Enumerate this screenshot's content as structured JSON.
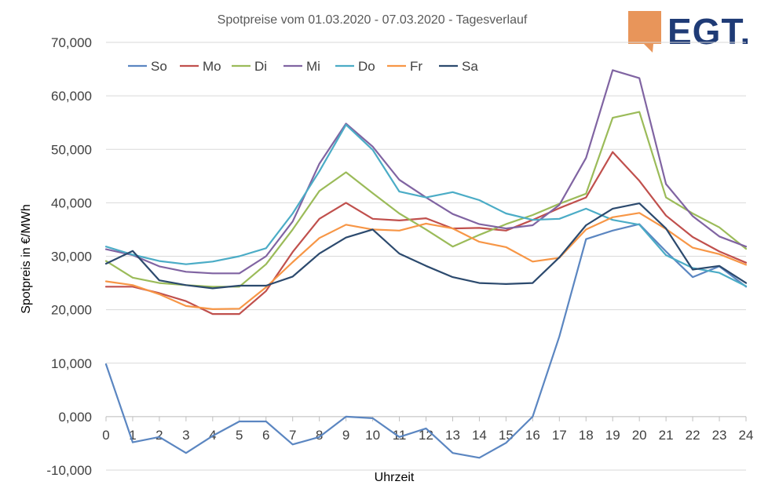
{
  "chart_data": {
    "type": "line",
    "title": "Spotpreise vom 01.03.2020 - 07.03.2020 - Tagesverlauf",
    "xlabel": "Uhrzeit",
    "ylabel": "Spotpreis in €/MWh",
    "ylim": [
      -10000,
      70000
    ],
    "xlim": [
      0,
      24
    ],
    "yticks": [
      "-10,000",
      "0,000",
      "10,000",
      "20,000",
      "30,000",
      "40,000",
      "50,000",
      "60,000",
      "70,000"
    ],
    "ytick_values": [
      -10000,
      0,
      10000,
      20000,
      30000,
      40000,
      50000,
      60000,
      70000
    ],
    "x": [
      0,
      1,
      2,
      3,
      4,
      5,
      6,
      7,
      8,
      9,
      10,
      11,
      12,
      13,
      14,
      15,
      16,
      17,
      18,
      19,
      20,
      21,
      22,
      23,
      24
    ],
    "grid": true,
    "legend_position": "top-left",
    "series": [
      {
        "name": "So",
        "color": "#5b86c1",
        "values": [
          9800,
          -4800,
          -3800,
          -6800,
          -3600,
          -900,
          -900,
          -5200,
          -3800,
          0,
          -300,
          -3800,
          -2200,
          -6800,
          -7700,
          -4900,
          0,
          15000,
          33200,
          34800,
          36000,
          30900,
          26100,
          28100,
          24300
        ]
      },
      {
        "name": "Mo",
        "color": "#c0504d",
        "values": [
          24300,
          24300,
          23100,
          21600,
          19200,
          19200,
          23500,
          30800,
          37000,
          40000,
          37000,
          36700,
          37100,
          35200,
          35300,
          34800,
          36800,
          39000,
          41000,
          49500,
          44100,
          37600,
          33600,
          30900,
          28800
        ]
      },
      {
        "name": "Di",
        "color": "#9bbb59",
        "values": [
          29100,
          26000,
          25000,
          24600,
          24300,
          24300,
          28500,
          35000,
          42200,
          45700,
          41800,
          38000,
          35000,
          31800,
          34000,
          36000,
          37700,
          39800,
          41700,
          55900,
          57000,
          41000,
          38000,
          35400,
          31400
        ]
      },
      {
        "name": "Mi",
        "color": "#8064a2",
        "values": [
          31300,
          30200,
          28100,
          27100,
          26800,
          26800,
          30000,
          36500,
          47300,
          54800,
          50500,
          44300,
          41000,
          37900,
          36000,
          35200,
          35800,
          39600,
          48400,
          64800,
          63300,
          43500,
          37500,
          33700,
          31800
        ]
      },
      {
        "name": "Do",
        "color": "#4bacc6",
        "values": [
          31800,
          30300,
          29100,
          28500,
          29000,
          30000,
          31500,
          38000,
          45900,
          54600,
          49900,
          42100,
          41000,
          42000,
          40500,
          38000,
          36800,
          37000,
          38900,
          36800,
          35900,
          30200,
          27800,
          26900,
          24400
        ]
      },
      {
        "name": "Fr",
        "color": "#f79646",
        "values": [
          25300,
          24600,
          22900,
          20700,
          20100,
          20200,
          24200,
          28900,
          33400,
          35900,
          35000,
          34800,
          36100,
          35200,
          32700,
          31700,
          29000,
          29700,
          35000,
          37300,
          38100,
          35100,
          31600,
          30400,
          28400
        ]
      },
      {
        "name": "Sa",
        "color": "#2c4a6e",
        "values": [
          28600,
          31000,
          25500,
          24600,
          24000,
          24500,
          24500,
          26200,
          30500,
          33500,
          35000,
          30500,
          28200,
          26100,
          25000,
          24800,
          25000,
          29800,
          35800,
          38900,
          39900,
          35200,
          27500,
          28200,
          25000
        ]
      }
    ]
  },
  "logo": {
    "text": "EGT.",
    "accent_color": "#e8955a",
    "text_color": "#1f3b76"
  }
}
